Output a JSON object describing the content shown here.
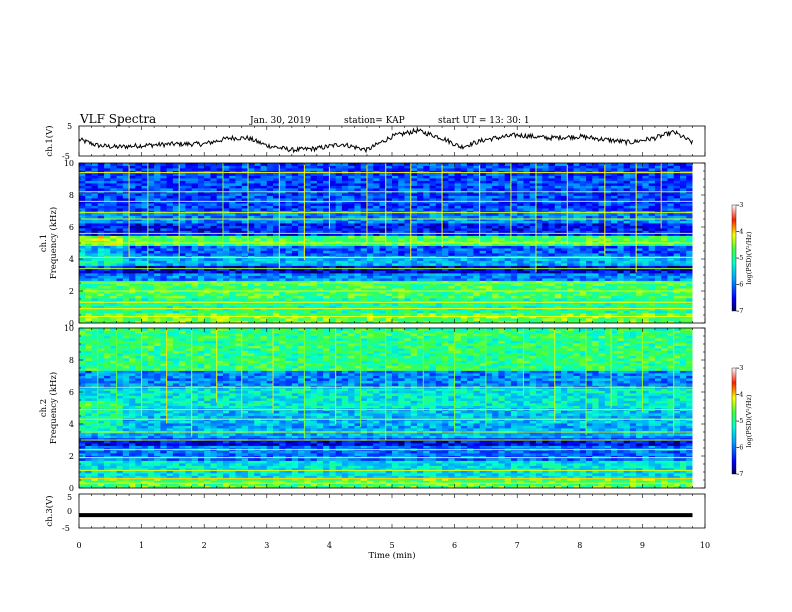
{
  "header": {
    "title": "VLF Spectra",
    "date": "Jan. 30, 2019",
    "station": "station= KAP",
    "start": "start UT =  13: 30: 1"
  },
  "chart_data": [
    {
      "type": "line",
      "panel": "ch1-waveform",
      "ylabel": "ch.1(V)",
      "ylim": [
        -5,
        5
      ],
      "yticks": [
        "5",
        "-5"
      ],
      "xlim": [
        0,
        10
      ],
      "x": [
        0,
        0.3,
        0.6,
        1.0,
        1.5,
        2.0,
        2.4,
        2.7,
        3.0,
        3.4,
        3.8,
        4.2,
        4.6,
        5.0,
        5.4,
        5.8,
        6.1,
        6.5,
        7.0,
        7.5,
        8.0,
        8.4,
        8.8,
        9.2,
        9.5,
        9.8
      ],
      "y": [
        0.5,
        -1.5,
        -2.0,
        -1.5,
        -1.0,
        -1.0,
        1.0,
        1.0,
        -1.5,
        -3.0,
        -2.5,
        -1.0,
        -3.0,
        1.5,
        3.5,
        1.0,
        -2.0,
        0.5,
        2.0,
        1.0,
        1.5,
        0.5,
        -0.5,
        1.0,
        3.0,
        -0.5
      ]
    },
    {
      "type": "heatmap",
      "panel": "ch1-spectrogram",
      "ylabel": "ch.1",
      "ylabel2": "Frequency (kHz)",
      "xlim": [
        0,
        9.8
      ],
      "ylim": [
        0,
        10
      ],
      "yticks": [
        "0",
        "2",
        "4",
        "6",
        "8",
        "10"
      ],
      "colorbar": {
        "label": "log(PSD)(V²/Hz)",
        "ticks": [
          "-3",
          "-4",
          "-5",
          "-6",
          "-7"
        ],
        "range": [
          -7,
          -3
        ]
      },
      "base_levels": [
        {
          "f": [
            0.0,
            0.6
          ],
          "psd": -4.6
        },
        {
          "f": [
            0.6,
            1.6
          ],
          "psd": -5.0
        },
        {
          "f": [
            1.6,
            2.6
          ],
          "psd": -4.8
        },
        {
          "f": [
            2.6,
            3.2
          ],
          "psd": -5.9
        },
        {
          "f": [
            3.2,
            3.6
          ],
          "psd": -6.6
        },
        {
          "f": [
            3.6,
            4.2
          ],
          "psd": -5.7
        },
        {
          "f": [
            4.2,
            4.8
          ],
          "psd": -6.1
        },
        {
          "f": [
            4.8,
            5.4
          ],
          "psd": -4.8
        },
        {
          "f": [
            5.4,
            6.2
          ],
          "psd": -6.4
        },
        {
          "f": [
            6.2,
            7.0
          ],
          "psd": -5.9
        },
        {
          "f": [
            7.0,
            10.0
          ],
          "psd": -6.2
        }
      ],
      "lines_khz": [
        0.4,
        0.9,
        1.3,
        2.0,
        2.5,
        3.4,
        4.1,
        5.0,
        5.6,
        6.5,
        6.9,
        7.6,
        8.2,
        9.4
      ],
      "impulse_times_min": [
        0.8,
        1.1,
        1.6,
        2.3,
        2.7,
        3.2,
        3.6,
        4.0,
        4.6,
        4.9,
        5.3,
        5.8,
        6.4,
        6.9,
        7.3,
        7.8,
        8.4,
        8.9,
        9.3
      ]
    },
    {
      "type": "heatmap",
      "panel": "ch2-spectrogram",
      "ylabel": "ch.2",
      "ylabel2": "Frequency (kHz)",
      "xlim": [
        0,
        9.8
      ],
      "ylim": [
        0,
        10
      ],
      "yticks": [
        "0",
        "2",
        "4",
        "6",
        "8",
        "10"
      ],
      "colorbar": {
        "label": "log(PSD)(V²/Hz)",
        "ticks": [
          "-3",
          "-4",
          "-5",
          "-6",
          "-7"
        ],
        "range": [
          -7,
          -3
        ]
      },
      "base_levels": [
        {
          "f": [
            0.0,
            0.7
          ],
          "psd": -4.7
        },
        {
          "f": [
            0.7,
            1.7
          ],
          "psd": -5.4
        },
        {
          "f": [
            1.7,
            2.6
          ],
          "psd": -6.0
        },
        {
          "f": [
            2.6,
            3.2
          ],
          "psd": -6.5
        },
        {
          "f": [
            3.2,
            4.0
          ],
          "psd": -5.7
        },
        {
          "f": [
            4.0,
            5.0
          ],
          "psd": -5.6
        },
        {
          "f": [
            5.0,
            6.2
          ],
          "psd": -5.3
        },
        {
          "f": [
            6.2,
            7.4
          ],
          "psd": -5.9
        },
        {
          "f": [
            7.4,
            10.0
          ],
          "psd": -4.9
        }
      ],
      "lines_khz": [
        0.3,
        0.6,
        1.1,
        1.9,
        2.4,
        3.0,
        3.5,
        4.3,
        4.9,
        6.3
      ],
      "impulse_times_min": [
        0.3,
        0.6,
        1.0,
        1.4,
        1.8,
        2.2,
        2.6,
        3.1,
        3.6,
        4.1,
        4.5,
        4.9,
        5.5,
        6.0,
        6.5,
        7.1,
        7.6,
        8.1,
        8.5,
        9.0,
        9.5
      ]
    },
    {
      "type": "line",
      "panel": "ch3-waveform",
      "ylabel": "ch.3(V)",
      "ylim": [
        -5,
        5
      ],
      "yticks": [
        "5",
        "0",
        "-5"
      ],
      "x": [
        0,
        9.8
      ],
      "y": [
        -1.2,
        -1.2
      ]
    }
  ],
  "x_axis": {
    "label": "Time (min)",
    "ticks": [
      "0",
      "1",
      "2",
      "3",
      "4",
      "5",
      "6",
      "7",
      "8",
      "9",
      "10"
    ],
    "range": [
      0,
      10
    ]
  }
}
